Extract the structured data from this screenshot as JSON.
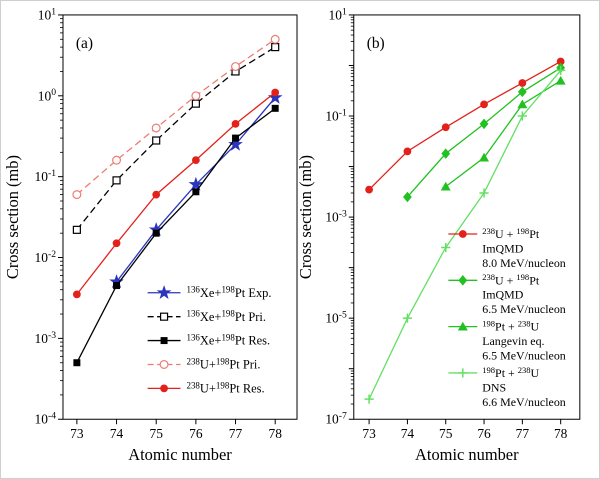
{
  "figure": {
    "background": "#ffffff",
    "border_color": "#cfcfcf",
    "description": "Cross section vs atomic number, two-panel log plot"
  },
  "chart_data": [
    {
      "type": "line",
      "panel": "a",
      "panel_label": "(a)",
      "xlabel": "Atomic number",
      "ylabel": "Cross section (mb)",
      "x_ticks": [
        73,
        74,
        75,
        76,
        77,
        78
      ],
      "xlim": [
        72.65,
        78.55
      ],
      "ylim": [
        0.0001,
        10
      ],
      "y_tick_exponents": [
        1,
        0,
        -1,
        -2,
        -3,
        -4
      ],
      "legend_position": "bottom-right",
      "series": [
        {
          "name": "xe-pt-exp",
          "label": "136Xe+198Pt Exp.",
          "label_segments": [
            {
              "sup": "136"
            },
            {
              "t": "Xe+"
            },
            {
              "sup": "198"
            },
            {
              "t": "Pt Exp."
            }
          ],
          "color": "#2b35be",
          "line_style": "solid",
          "marker": "star",
          "x": [
            74,
            75,
            76,
            77,
            78
          ],
          "y": [
            0.005,
            0.022,
            0.08,
            0.25,
            0.95
          ]
        },
        {
          "name": "xe-pt-pri",
          "label": "136Xe+198Pt Pri.",
          "label_segments": [
            {
              "sup": "136"
            },
            {
              "t": "Xe+"
            },
            {
              "sup": "198"
            },
            {
              "t": "Pt Pri."
            }
          ],
          "color": "#000000",
          "line_style": "dashed",
          "marker": "square-open",
          "x": [
            73,
            74,
            75,
            76,
            77,
            78
          ],
          "y": [
            0.022,
            0.09,
            0.28,
            0.8,
            2.0,
            4.0
          ]
        },
        {
          "name": "xe-pt-res",
          "label": "136Xe+198Pt Res.",
          "label_segments": [
            {
              "sup": "136"
            },
            {
              "t": "Xe+"
            },
            {
              "sup": "198"
            },
            {
              "t": "Pt Res."
            }
          ],
          "color": "#000000",
          "line_style": "solid",
          "marker": "square-filled",
          "x": [
            73,
            74,
            75,
            76,
            77,
            78
          ],
          "y": [
            0.0005,
            0.0045,
            0.02,
            0.065,
            0.3,
            0.7
          ]
        },
        {
          "name": "u-pt-pri",
          "label": "238U+198Pt Pri.",
          "label_segments": [
            {
              "sup": "238"
            },
            {
              "t": "U+"
            },
            {
              "sup": "198"
            },
            {
              "t": "Pt Pri."
            }
          ],
          "color": "#ed7d73",
          "line_style": "dashed",
          "marker": "circle-open",
          "x": [
            73,
            74,
            75,
            76,
            77,
            78
          ],
          "y": [
            0.06,
            0.16,
            0.4,
            1.0,
            2.3,
            5.0
          ]
        },
        {
          "name": "u-pt-res",
          "label": "238U+198Pt Res.",
          "label_segments": [
            {
              "sup": "238"
            },
            {
              "t": "U+"
            },
            {
              "sup": "198"
            },
            {
              "t": "Pt Res."
            }
          ],
          "color": "#e3211b",
          "line_style": "solid",
          "marker": "circle-filled",
          "x": [
            73,
            74,
            75,
            76,
            77,
            78
          ],
          "y": [
            0.0035,
            0.015,
            0.06,
            0.16,
            0.45,
            1.1
          ]
        }
      ]
    },
    {
      "type": "line",
      "panel": "b",
      "panel_label": "(b)",
      "xlabel": "Atomic number",
      "ylabel": "Cross section (mb)",
      "x_ticks": [
        73,
        74,
        75,
        76,
        77,
        78
      ],
      "xlim": [
        72.6,
        78.5
      ],
      "ylim": [
        1e-07,
        10
      ],
      "y_tick_exponents": [
        1,
        -1,
        -3,
        -5,
        -7
      ],
      "legend_position": "right",
      "series": [
        {
          "name": "u-pt-imqmd-8",
          "label": "238U + 198Pt ImQMD 8.0 MeV/nucleon",
          "label_lines": [
            [
              {
                "sup": "238"
              },
              {
                "t": "U + "
              },
              {
                "sup": "198"
              },
              {
                "t": "Pt"
              }
            ],
            [
              {
                "t": "ImQMD"
              }
            ],
            [
              {
                "t": "8.0 MeV/nucleon"
              }
            ]
          ],
          "color": "#e3211b",
          "line_style": "solid",
          "marker": "circle-filled",
          "x": [
            73,
            74,
            75,
            76,
            77,
            78
          ],
          "y": [
            0.0035,
            0.02,
            0.06,
            0.17,
            0.45,
            1.2
          ]
        },
        {
          "name": "u-pt-imqmd-65",
          "label": "238U + 198Pt ImQMD 6.5 MeV/nucleon",
          "label_lines": [
            [
              {
                "sup": "238"
              },
              {
                "t": "U + "
              },
              {
                "sup": "198"
              },
              {
                "t": "Pt"
              }
            ],
            [
              {
                "t": "ImQMD"
              }
            ],
            [
              {
                "t": "6.5 MeV/nucleon"
              }
            ]
          ],
          "color": "#21c121",
          "line_style": "solid",
          "marker": "diamond",
          "x": [
            74,
            75,
            76,
            77,
            78
          ],
          "y": [
            0.0025,
            0.018,
            0.07,
            0.3,
            0.9
          ]
        },
        {
          "name": "pt-u-langevin",
          "label": "198Pt + 238U Langevin eq. 6.5 MeV/nucleon",
          "label_lines": [
            [
              {
                "sup": "198"
              },
              {
                "t": "Pt + "
              },
              {
                "sup": "238"
              },
              {
                "t": "U"
              }
            ],
            [
              {
                "t": "Langevin eq."
              }
            ],
            [
              {
                "t": "6.5 MeV/nucleon"
              }
            ]
          ],
          "color": "#21c121",
          "line_style": "solid",
          "marker": "triangle",
          "x": [
            75,
            76,
            77,
            78
          ],
          "y": [
            0.004,
            0.015,
            0.17,
            0.5
          ]
        },
        {
          "name": "pt-u-dns",
          "label": "198Pt + 238U DNS 6.6 MeV/nucleon",
          "label_lines": [
            [
              {
                "sup": "198"
              },
              {
                "t": "Pt + "
              },
              {
                "sup": "238"
              },
              {
                "t": "U"
              }
            ],
            [
              {
                "t": "DNS"
              }
            ],
            [
              {
                "t": "6.6 MeV/nucleon"
              }
            ]
          ],
          "color": "#63e063",
          "line_style": "solid",
          "marker": "plus",
          "x": [
            73,
            74,
            75,
            76,
            77,
            78
          ],
          "y": [
            2.5e-07,
            1e-05,
            0.00025,
            0.003,
            0.1,
            0.8
          ]
        }
      ]
    }
  ]
}
